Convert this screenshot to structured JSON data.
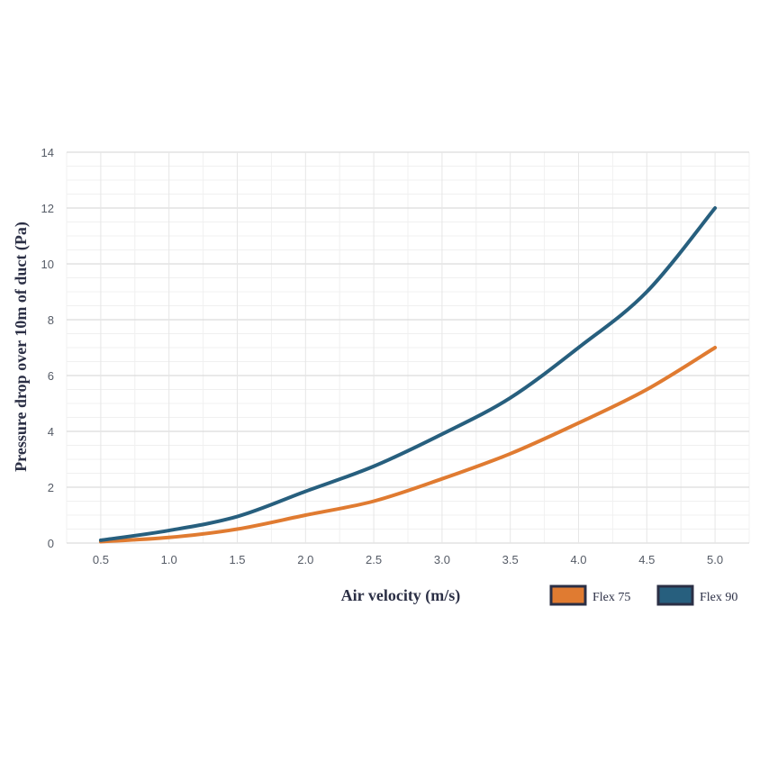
{
  "chart_data": {
    "type": "line",
    "xlabel": "Air velocity (m/s)",
    "ylabel": "Pressure drop over 10m of duct (Pa)",
    "x": [
      0.5,
      1.0,
      1.5,
      2.0,
      2.5,
      3.0,
      3.5,
      4.0,
      4.5,
      5.0
    ],
    "x_ticks": [
      "0.5",
      "1.0",
      "1.5",
      "2.0",
      "2.5",
      "3.0",
      "3.5",
      "4.0",
      "4.5",
      "5.0"
    ],
    "y_ticks": [
      "0",
      "2",
      "4",
      "6",
      "8",
      "10",
      "12",
      "14"
    ],
    "xlim": [
      0.25,
      5.25
    ],
    "ylim": [
      0,
      14
    ],
    "grid": true,
    "legend_position": "bottom-right",
    "series": [
      {
        "name": "Flex 75",
        "color": "#e07b31",
        "values": [
          0.05,
          0.2,
          0.5,
          1.0,
          1.5,
          2.3,
          3.2,
          4.3,
          5.5,
          7.0
        ]
      },
      {
        "name": "Flex 90",
        "color": "#275f7e",
        "values": [
          0.1,
          0.45,
          0.95,
          1.85,
          2.75,
          3.9,
          5.2,
          7.0,
          9.0,
          12.0
        ]
      }
    ]
  }
}
